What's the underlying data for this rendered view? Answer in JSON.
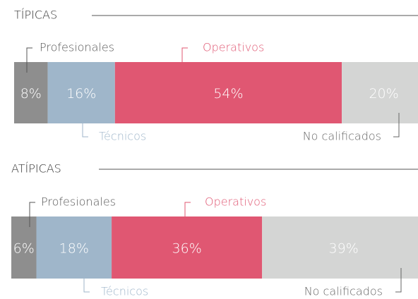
{
  "chart_data": [
    {
      "type": "bar",
      "stacked": true,
      "title": "TÍPICAS",
      "series": [
        {
          "name": "Profesionales",
          "color": "#8e8e8e",
          "values": [
            8
          ],
          "value_labels": [
            "8%"
          ]
        },
        {
          "name": "Técnicos",
          "color": "#9fb6ca",
          "values": [
            16
          ],
          "value_labels": [
            "16%"
          ]
        },
        {
          "name": "Operativos",
          "color": "#e05772",
          "values": [
            54
          ],
          "value_labels": [
            "54%"
          ]
        },
        {
          "name": "No calificados",
          "color": "#d4d5d4",
          "values": [
            20
          ],
          "value_labels": [
            "20%"
          ]
        }
      ]
    },
    {
      "type": "bar",
      "stacked": true,
      "title": "ATÍPICAS",
      "series": [
        {
          "name": "Profesionales",
          "color": "#8e8e8e",
          "values": [
            6
          ],
          "value_labels": [
            "6%"
          ]
        },
        {
          "name": "Técnicos",
          "color": "#9fb6ca",
          "values": [
            18
          ],
          "value_labels": [
            "18%"
          ]
        },
        {
          "name": "Operativos",
          "color": "#e05772",
          "values": [
            36
          ],
          "value_labels": [
            "36%"
          ]
        },
        {
          "name": "No calificados",
          "color": "#d4d5d4",
          "values": [
            39
          ],
          "value_labels": [
            "39%"
          ]
        }
      ]
    }
  ]
}
